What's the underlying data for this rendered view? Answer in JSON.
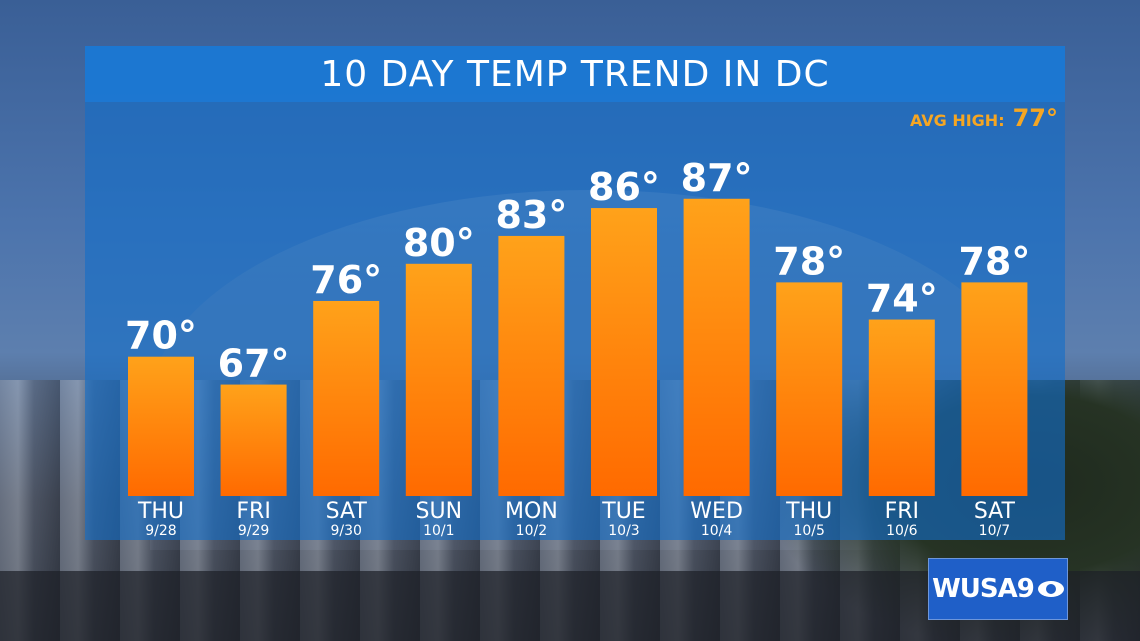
{
  "header": {
    "title": "10 DAY TEMP TREND IN DC"
  },
  "avg_high": {
    "label": "AVG HIGH:",
    "value": "77°"
  },
  "logo": {
    "text": "WUSA9"
  },
  "colors": {
    "bar_top": "#ffa21a",
    "bar_bottom": "#ff6a00",
    "accent": "#f5a623",
    "panel": "#1c78d2"
  },
  "chart_data": {
    "type": "bar",
    "title": "10 DAY TEMP TREND IN DC",
    "categories": [
      "THU",
      "FRI",
      "SAT",
      "SUN",
      "MON",
      "TUE",
      "WED",
      "THU",
      "FRI",
      "SAT"
    ],
    "dates": [
      "9/28",
      "9/29",
      "9/30",
      "10/1",
      "10/2",
      "10/3",
      "10/4",
      "10/5",
      "10/6",
      "10/7"
    ],
    "values": [
      70,
      67,
      76,
      80,
      83,
      86,
      87,
      78,
      74,
      78
    ],
    "value_labels": [
      "70°",
      "67°",
      "76°",
      "80°",
      "83°",
      "86°",
      "87°",
      "78°",
      "74°",
      "78°"
    ],
    "unit": "°F",
    "grid": false,
    "legend": "none"
  }
}
